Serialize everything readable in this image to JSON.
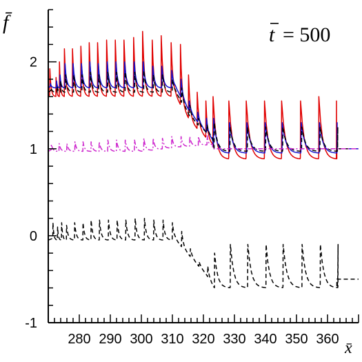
{
  "chart_data": {
    "type": "line",
    "ylabel": "f̄",
    "xlabel": "x̄",
    "annotation": {
      "var": "t",
      "equals": "= 500"
    },
    "xlim": [
      270,
      370
    ],
    "ylim": [
      -1,
      2.6
    ],
    "x_ticks": [
      280,
      290,
      300,
      310,
      320,
      330,
      340,
      350,
      360
    ],
    "y_ticks": [
      -1,
      0,
      1,
      2
    ],
    "colors": {
      "red": "#e00000",
      "blue": "#1010cc",
      "magenta": "#cc22cc",
      "black": "#000000"
    },
    "series": [
      {
        "key": "red",
        "style": "solid",
        "baseline": [
          [
            270,
            1.6
          ],
          [
            311,
            1.6
          ],
          [
            316,
            1.3
          ],
          [
            323,
            1.05
          ],
          [
            323.5,
            0.88
          ],
          [
            366,
            0.88
          ]
        ],
        "tail": [
          [
            363,
            1.0
          ],
          [
            370,
            1.0
          ]
        ],
        "spikes": [
          [
            270.5,
            1.92
          ],
          [
            272.5,
            1.82
          ],
          [
            273.6,
            2.0
          ],
          [
            275.2,
            2.15
          ],
          [
            277.8,
            2.15
          ],
          [
            280.5,
            2.18
          ],
          [
            283.2,
            2.22
          ],
          [
            285.9,
            2.22
          ],
          [
            288.8,
            2.25
          ],
          [
            291.6,
            2.25
          ],
          [
            294.4,
            2.25
          ],
          [
            297.5,
            2.28
          ],
          [
            300.4,
            2.35
          ],
          [
            303.5,
            2.25
          ],
          [
            306.4,
            2.3
          ],
          [
            309.6,
            2.22
          ],
          [
            312.6,
            2.2
          ],
          [
            315.2,
            1.85
          ],
          [
            318,
            1.65
          ],
          [
            320.8,
            1.55
          ],
          [
            323.1,
            1.6
          ],
          [
            328.2,
            1.55
          ],
          [
            333.8,
            1.55
          ],
          [
            339.7,
            1.55
          ],
          [
            345.2,
            1.55
          ],
          [
            351.3,
            1.55
          ],
          [
            357.2,
            1.6
          ],
          [
            362.9,
            1.55
          ]
        ]
      },
      {
        "key": "blue",
        "style": "solid",
        "baseline": [
          [
            270,
            1.7
          ],
          [
            311,
            1.7
          ],
          [
            316,
            1.4
          ],
          [
            323,
            1.1
          ],
          [
            323.5,
            0.95
          ],
          [
            366,
            0.95
          ]
        ],
        "tail": [
          [
            363,
            1.0
          ],
          [
            370,
            1.0
          ]
        ],
        "spikes": [
          [
            270.7,
            1.75
          ],
          [
            272.7,
            1.78
          ],
          [
            273.8,
            1.85
          ],
          [
            275.4,
            1.98
          ],
          [
            278,
            1.98
          ],
          [
            280.7,
            1.98
          ],
          [
            283.4,
            2.0
          ],
          [
            286.1,
            1.98
          ],
          [
            289,
            2.0
          ],
          [
            291.8,
            2.0
          ],
          [
            294.6,
            2.0
          ],
          [
            297.7,
            2.0
          ],
          [
            300.6,
            2.0
          ],
          [
            303.7,
            1.95
          ],
          [
            306.6,
            1.95
          ],
          [
            309.8,
            1.9
          ],
          [
            312.8,
            1.8
          ],
          [
            315.4,
            1.55
          ],
          [
            318.2,
            1.42
          ],
          [
            321,
            1.35
          ],
          [
            323.3,
            1.35
          ],
          [
            328.4,
            1.3
          ],
          [
            334,
            1.3
          ],
          [
            339.9,
            1.3
          ],
          [
            345.4,
            1.3
          ],
          [
            351.5,
            1.3
          ],
          [
            357.4,
            1.3
          ],
          [
            363.1,
            1.3
          ]
        ]
      },
      {
        "key": "black",
        "style": "dashed",
        "baseline": [
          [
            270,
            1.65
          ],
          [
            311,
            1.65
          ],
          [
            316,
            1.35
          ],
          [
            323,
            1.12
          ],
          [
            323.5,
            0.97
          ],
          [
            366,
            0.97
          ]
        ],
        "tail": [
          [
            363,
            1.0
          ],
          [
            370,
            1.0
          ]
        ],
        "spikes": [
          [
            270.9,
            1.7
          ],
          [
            272.9,
            1.72
          ],
          [
            274,
            1.78
          ],
          [
            275.6,
            1.85
          ],
          [
            278.2,
            1.85
          ],
          [
            280.9,
            1.85
          ],
          [
            283.6,
            1.88
          ],
          [
            286.3,
            1.85
          ],
          [
            289.2,
            1.88
          ],
          [
            292,
            1.88
          ],
          [
            294.8,
            1.88
          ],
          [
            297.9,
            1.88
          ],
          [
            300.8,
            1.9
          ],
          [
            303.9,
            1.85
          ],
          [
            306.8,
            1.85
          ],
          [
            310,
            1.8
          ],
          [
            313,
            1.7
          ],
          [
            315.6,
            1.5
          ],
          [
            318.4,
            1.35
          ],
          [
            321.2,
            1.28
          ],
          [
            323.5,
            1.3
          ],
          [
            328.6,
            1.25
          ],
          [
            334.2,
            1.25
          ],
          [
            340.1,
            1.25
          ],
          [
            345.6,
            1.25
          ],
          [
            351.7,
            1.25
          ],
          [
            357.6,
            1.25
          ],
          [
            363.3,
            1.25
          ]
        ]
      },
      {
        "key": "magenta",
        "style": "dashdot",
        "baseline": [
          [
            270,
            0.97
          ],
          [
            300,
            0.97
          ],
          [
            312,
            1.02
          ],
          [
            323,
            1.05
          ]
        ],
        "tail": [
          [
            323,
            1.0
          ],
          [
            370,
            1.0
          ]
        ],
        "spikes": [
          [
            271,
            1.05
          ],
          [
            273.5,
            1.06
          ],
          [
            276,
            1.06
          ],
          [
            278.6,
            1.08
          ],
          [
            281.2,
            1.08
          ],
          [
            283.8,
            1.08
          ],
          [
            286.4,
            1.08
          ],
          [
            289.2,
            1.1
          ],
          [
            292,
            1.1
          ],
          [
            294.8,
            1.1
          ],
          [
            297.8,
            1.1
          ],
          [
            300.8,
            1.12
          ],
          [
            303.8,
            1.12
          ],
          [
            306.8,
            1.12
          ],
          [
            309.8,
            1.14
          ],
          [
            312.8,
            1.14
          ],
          [
            315.6,
            1.14
          ],
          [
            318.4,
            1.14
          ],
          [
            321.2,
            1.15
          ]
        ]
      },
      {
        "key": "black",
        "style": "dashed",
        "baseline": [
          [
            270,
            -0.05
          ],
          [
            311,
            -0.05
          ],
          [
            316,
            -0.25
          ],
          [
            321,
            -0.45
          ],
          [
            323.5,
            -0.6
          ],
          [
            366,
            -0.6
          ]
        ],
        "tail": [
          [
            363,
            -0.5
          ],
          [
            370,
            -0.5
          ]
        ],
        "spikes": [
          [
            271.5,
            0.15
          ],
          [
            273,
            0.1
          ],
          [
            274.3,
            0.15
          ],
          [
            275.9,
            0.12
          ],
          [
            278.5,
            0.15
          ],
          [
            281.2,
            0.15
          ],
          [
            283.8,
            0.18
          ],
          [
            286.5,
            0.18
          ],
          [
            289.4,
            0.18
          ],
          [
            292.2,
            0.18
          ],
          [
            295,
            0.18
          ],
          [
            298,
            0.2
          ],
          [
            301,
            0.2
          ],
          [
            304,
            0.18
          ],
          [
            307,
            0.18
          ],
          [
            310,
            0.15
          ],
          [
            313,
            0.05
          ],
          [
            315.8,
            -0.15
          ],
          [
            318.6,
            -0.3
          ],
          [
            321.4,
            -0.35
          ],
          [
            323.6,
            -0.2
          ],
          [
            328.7,
            -0.1
          ],
          [
            334.3,
            -0.1
          ],
          [
            340.2,
            -0.1
          ],
          [
            345.7,
            -0.1
          ],
          [
            351.8,
            -0.1
          ],
          [
            357.7,
            -0.1
          ],
          [
            363.4,
            -0.1
          ]
        ]
      }
    ]
  }
}
